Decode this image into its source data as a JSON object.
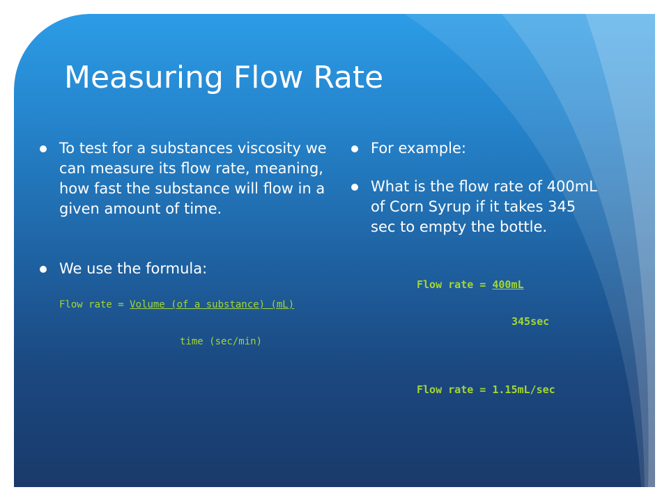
{
  "slide": {
    "title": "Measuring Flow Rate",
    "left_column": {
      "bullets": [
        "To test for a substances viscosity we can measure its flow rate, meaning, how fast the substance will flow in a given amount of time.",
        "We use the formula:"
      ],
      "formula": {
        "prefix": "Flow rate = ",
        "numerator": "Volume (of a substance) (mL)",
        "denominator": "time (sec/min)"
      }
    },
    "right_column": {
      "bullets": [
        "For example:",
        "What is the flow rate of 400mL of Corn Syrup if it takes 345 sec to empty the bottle."
      ],
      "example": {
        "prefix": "Flow rate = ",
        "numerator": "400mL",
        "denominator": "345sec",
        "result": "Flow rate = 1.15mL/sec"
      }
    }
  },
  "colors": {
    "background_top": "#2c9ce6",
    "background_bottom": "#1a3a6a",
    "text": "#ffffff",
    "formula_accent": "#a4d633"
  }
}
